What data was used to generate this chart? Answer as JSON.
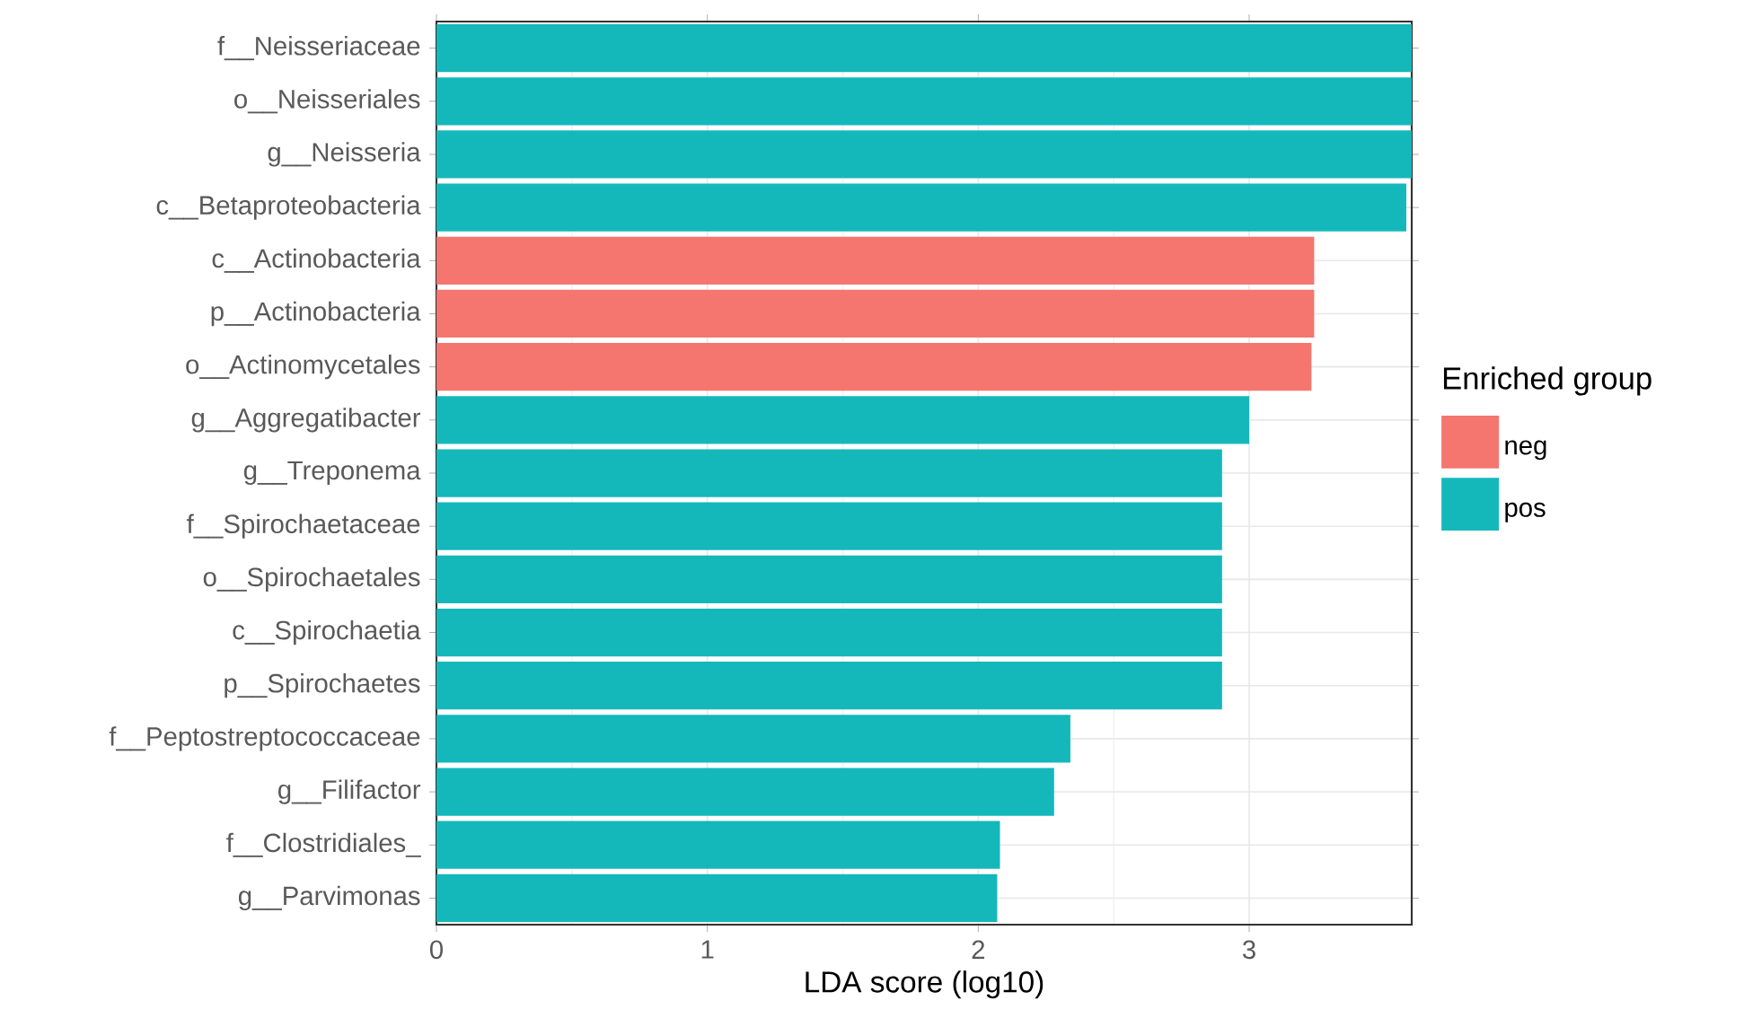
{
  "chart_data": {
    "type": "bar",
    "orientation": "horizontal",
    "xlabel": "LDA score (log10)",
    "legend_title": "Enriched group",
    "legend": "right",
    "grid": true,
    "categories": [
      "f__Neisseriaceae",
      "o__Neisseriales",
      "g__Neisseria",
      "c__Betaproteobacteria",
      "c__Actinobacteria",
      "p__Actinobacteria",
      "o__Actinomycetales",
      "g__Aggregatibacter",
      "g__Treponema",
      "f__Spirochaetaceae",
      "o__Spirochaetales",
      "c__Spirochaetia",
      "p__Spirochaetes",
      "f__Peptostreptococcaceae",
      "g__Filifactor",
      "f__Clostridiales_",
      "g__Parvimonas"
    ],
    "xlim": [
      0,
      3.6
    ],
    "xticks": [
      0,
      1,
      2,
      3
    ],
    "series": [
      {
        "name": "neg",
        "color": "#f4766f",
        "values": [
          null,
          null,
          null,
          null,
          3.24,
          3.24,
          3.23,
          null,
          null,
          null,
          null,
          null,
          null,
          null,
          null,
          null,
          null
        ]
      },
      {
        "name": "pos",
        "color": "#14b8bb",
        "values": [
          3.6,
          3.6,
          3.6,
          3.58,
          null,
          null,
          null,
          3.0,
          2.9,
          2.9,
          2.9,
          2.9,
          2.9,
          2.34,
          2.28,
          2.08,
          2.07
        ]
      }
    ]
  }
}
